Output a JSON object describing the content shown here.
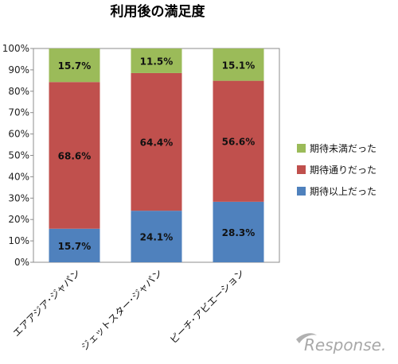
{
  "chart_data": {
    "type": "bar",
    "stacked": true,
    "percent": true,
    "title": "利用後の満足度",
    "categories": [
      "エアアジア･ジャパン",
      "ジェットスター･ジャパン",
      "ピーチ･アビエーション"
    ],
    "series": [
      {
        "name": "期待以上だった",
        "color": "#4f81bd",
        "values": [
          15.7,
          24.1,
          28.3
        ],
        "labels": [
          "15.7%",
          "24.1%",
          "28.3%"
        ]
      },
      {
        "name": "期待通りだった",
        "color": "#c0504d",
        "values": [
          68.6,
          64.4,
          56.6
        ],
        "labels": [
          "68.6%",
          "64.4%",
          "56.6%"
        ]
      },
      {
        "name": "期待未満だった",
        "color": "#9bbb59",
        "values": [
          15.7,
          11.5,
          15.1
        ],
        "labels": [
          "15.7%",
          "11.5%",
          "15.1%"
        ]
      }
    ],
    "ylim": [
      0,
      100
    ],
    "yticks": [
      "0%",
      "10%",
      "20%",
      "30%",
      "40%",
      "50%",
      "60%",
      "70%",
      "80%",
      "90%",
      "100%"
    ],
    "legend": {
      "position": "right",
      "order": [
        "期待未満だった",
        "期待通りだった",
        "期待以上だった"
      ]
    },
    "grid": false
  },
  "watermark": {
    "text": "Response."
  }
}
